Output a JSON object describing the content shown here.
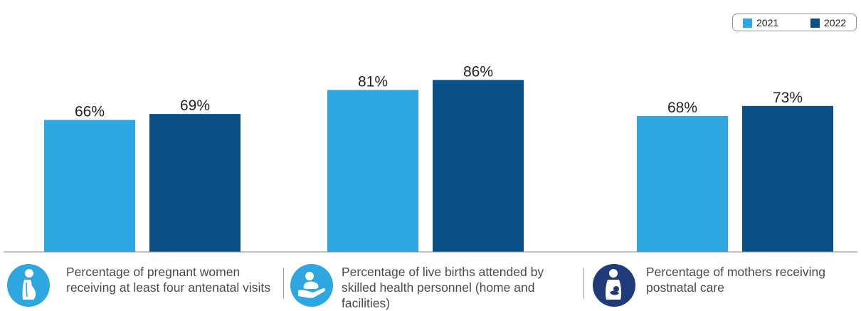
{
  "chart_data": {
    "type": "bar",
    "categories": [
      "Percentage of pregnant women receiving at least four antenatal visits",
      "Percentage of live births attended by skilled health personnel (home and facilities)",
      "Percentage of mothers receiving postnatal care"
    ],
    "series": [
      {
        "name": "2021",
        "values": [
          66,
          81,
          68
        ],
        "labels": [
          "66%",
          "81%",
          "68%"
        ],
        "color": "#2ea7e0"
      },
      {
        "name": "2022",
        "values": [
          69,
          86,
          73
        ],
        "labels": [
          "69%",
          "86%",
          "73%"
        ],
        "color": "#0b4f87"
      }
    ],
    "ylim": [
      0,
      100
    ],
    "grid": false,
    "legend_placement": "top-right",
    "colors": {
      "accent_light": "#2ea7e0",
      "accent_dark": "#0b4f87",
      "icon_third": "#1f3b7a"
    }
  },
  "legend": {
    "items": [
      {
        "label": "2021"
      },
      {
        "label": "2022"
      }
    ]
  },
  "categories_info": [
    {
      "label": "Percentage of pregnant women receiving at least four antenatal visits",
      "icon": "pregnant-woman-icon"
    },
    {
      "label": "Percentage of live births attended by skilled health personnel (home and facilities)",
      "icon": "baby-in-hand-icon"
    },
    {
      "label": "Percentage of mothers receiving postnatal care",
      "icon": "mother-with-baby-icon"
    }
  ]
}
